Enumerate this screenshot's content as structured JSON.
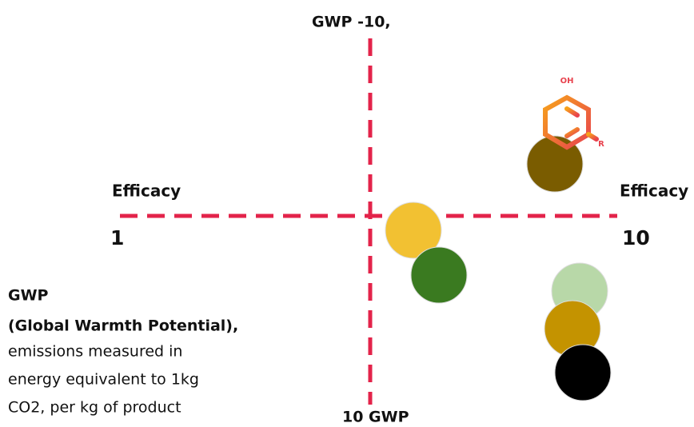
{
  "axes": {
    "top": "GWP -10,",
    "bottom": "10 GWP",
    "left_title": "Efficacy",
    "left_value": "1",
    "right_title": "Efficacy",
    "right_value": "10"
  },
  "legend": {
    "title": "GWP",
    "subtitle": "(Global Warmth Potential),",
    "lines": [
      "emissions measured in",
      "energy equivalent to 1kg",
      "CO2, per kg of product"
    ]
  },
  "molecule": {
    "group_top": "OH",
    "group_side": "R"
  }
}
